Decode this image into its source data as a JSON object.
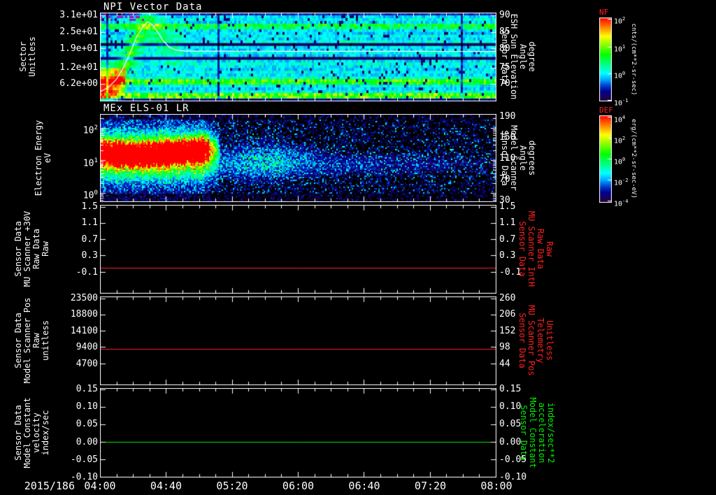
{
  "page": {
    "background": "#000000",
    "text_color": "#ffffff",
    "date_label": "2015/186"
  },
  "x_axis": {
    "tick_labels": [
      "04:00",
      "04:40",
      "05:20",
      "06:00",
      "06:40",
      "07:20",
      "08:00"
    ],
    "minutes_span": 240,
    "minor_ticks_per_major": 4
  },
  "chart_data": [
    {
      "id": "npi",
      "type": "heatmap",
      "title": "NPI Vector Data",
      "left_label": "Sector\nUnitless",
      "right_label": "Sensor Data\nESH Sun Elevation\nAngle\ndegree",
      "right_label_color": "#ffffff",
      "left_ticks": [
        {
          "label": "3.1e+01",
          "f": 0.031
        },
        {
          "label": "2.5e+01",
          "f": 0.219
        },
        {
          "label": "1.9e+01",
          "f": 0.406
        },
        {
          "label": "1.2e+01",
          "f": 0.625
        },
        {
          "label": "6.2e+00",
          "f": 0.806
        }
      ],
      "right_ticks": [
        {
          "label": "90",
          "f": 0.031
        },
        {
          "label": "85",
          "f": 0.219
        },
        {
          "label": "80",
          "f": 0.406
        },
        {
          "label": "75",
          "f": 0.625
        },
        {
          "label": "70",
          "f": 0.806
        }
      ],
      "sector_range": [
        0,
        32
      ],
      "heat_rows_base": [
        0.16,
        0.3,
        0.34,
        0.3,
        0.52,
        0.47,
        0.32,
        0.29,
        0.34,
        0.3,
        0.36,
        0.05,
        0.32,
        0.3,
        0.34,
        0.29,
        0.05,
        0.31,
        0.36,
        0.32,
        0.3,
        0.34,
        0.3,
        0.37,
        0.58,
        0.55,
        0.33,
        0.3,
        0.35,
        0.62,
        0.6,
        0.12
      ],
      "overlay_line": {
        "color": "#ffffff",
        "points": [
          [
            0,
            3.5
          ],
          [
            5,
            5
          ],
          [
            10,
            8
          ],
          [
            14,
            12
          ],
          [
            18,
            17
          ],
          [
            22,
            23
          ],
          [
            26,
            27
          ],
          [
            29,
            28.8
          ],
          [
            32,
            27.5
          ],
          [
            35,
            25
          ],
          [
            38,
            22
          ],
          [
            42,
            19.5
          ],
          [
            46,
            18.5
          ],
          [
            52,
            18.1
          ],
          [
            240,
            18
          ]
        ]
      }
    },
    {
      "id": "els",
      "type": "heatmap",
      "title": "MEx ELS-01 LR",
      "left_label": "Electron Energy\neV",
      "right_label": "Sensor Data\nModel Scanner\nAngle\ndegrees",
      "right_label_color": "#ffffff",
      "left_ticks": [
        {
          "label": "10^2",
          "f": 0.159
        },
        {
          "label": "10^1",
          "f": 0.53
        },
        {
          "label": "10^0",
          "f": 0.9
        }
      ],
      "right_ticks": [
        {
          "label": "190",
          "f": 0.032
        },
        {
          "label": "150",
          "f": 0.27
        },
        {
          "label": "110",
          "f": 0.508
        },
        {
          "label": "70",
          "f": 0.746
        },
        {
          "label": "30",
          "f": 0.984
        }
      ],
      "log_axis": {
        "log_top": 2.43,
        "decades_span": 2.7
      },
      "burst": {
        "t_start_min": 0,
        "t_end_min": 70,
        "energy_center_frac": 0.42
      }
    },
    {
      "id": "mu-scanner-30v",
      "type": "line",
      "left_label": "Sensor Data\nMU Scanner +30V\nRaw Data\nRaw",
      "right_label": "Sensor Data\nMU Scanner IntH\nRaw Data\nRaw",
      "right_label_color": "#ff2020",
      "left_ticks": [
        {
          "label": "1.5",
          "f": 0.02
        },
        {
          "label": "1.1",
          "f": 0.205
        },
        {
          "label": "0.7",
          "f": 0.39
        },
        {
          "label": "0.3",
          "f": 0.575
        },
        {
          "label": "-0.1",
          "f": 0.76
        }
      ],
      "right_ticks": [
        {
          "label": "1.5",
          "f": 0.02
        },
        {
          "label": "1.1",
          "f": 0.205
        },
        {
          "label": "0.7",
          "f": 0.39
        },
        {
          "label": "0.3",
          "f": 0.575
        },
        {
          "label": "-0.1",
          "f": 0.76
        }
      ],
      "line": {
        "color": "#ff2020",
        "value": 0.0,
        "f": 0.715
      }
    },
    {
      "id": "model-scanner-pos",
      "type": "line",
      "left_label": "Sensor Data\nModel Scanner Pos\nRaw\nunitless",
      "right_label": "Sensor Data\nMU Scanner Pos\nTelemetry\nUnitless",
      "right_label_color": "#ff2020",
      "left_ticks": [
        {
          "label": "23500",
          "f": 0.02
        },
        {
          "label": "18800",
          "f": 0.205
        },
        {
          "label": "14100",
          "f": 0.39
        },
        {
          "label": "9400",
          "f": 0.575
        },
        {
          "label": "4700",
          "f": 0.76
        }
      ],
      "right_ticks": [
        {
          "label": "260",
          "f": 0.02
        },
        {
          "label": "206",
          "f": 0.205
        },
        {
          "label": "152",
          "f": 0.39
        },
        {
          "label": "98",
          "f": 0.575
        },
        {
          "label": "44",
          "f": 0.76
        }
      ],
      "line": {
        "color": "#ff2020",
        "value": 8800,
        "f": 0.599
      }
    },
    {
      "id": "model-constant",
      "type": "line",
      "left_label": "Sensor Data\nModel Constant\nvelocity\nindex/sec",
      "right_label": "Sensor Data\nModel Constant\nacceleration\nindex/sec**2",
      "right_label_color": "#00ee00",
      "left_ticks": [
        {
          "label": "0.15",
          "f": 0.016
        },
        {
          "label": "0.10",
          "f": 0.213
        },
        {
          "label": "0.05",
          "f": 0.41
        },
        {
          "label": "0.00",
          "f": 0.607
        },
        {
          "label": "-0.05",
          "f": 0.803
        },
        {
          "label": "-0.10",
          "f": 1.0
        }
      ],
      "right_ticks": [
        {
          "label": "0.15",
          "f": 0.016
        },
        {
          "label": "0.10",
          "f": 0.213
        },
        {
          "label": "0.05",
          "f": 0.41
        },
        {
          "label": "0.00",
          "f": 0.607
        },
        {
          "label": "-0.05",
          "f": 0.803
        },
        {
          "label": "-0.10",
          "f": 1.0
        }
      ],
      "line": {
        "color": "#00ee00",
        "value": 0.0,
        "f": 0.607
      }
    }
  ],
  "colorbars": [
    {
      "id": "nf",
      "name": "NF",
      "name_color": "#ff2020",
      "unit": "cnts/(cm**2-sr-sec)",
      "ticks": [
        {
          "label": "10^2",
          "f": 0.02
        },
        {
          "label": "10^1",
          "f": 0.35
        },
        {
          "label": "10^0",
          "f": 0.67
        },
        {
          "label": "10^-1",
          "f": 0.99
        }
      ]
    },
    {
      "id": "def",
      "name": "DEF",
      "name_color": "#ff2020",
      "unit": "erg/(cm**2-sr-sec-eV)",
      "ticks": [
        {
          "label": "10^4",
          "f": 0.02
        },
        {
          "label": "10^2",
          "f": 0.26
        },
        {
          "label": "10^0",
          "f": 0.5
        },
        {
          "label": "10^-2",
          "f": 0.74
        },
        {
          "label": "10^-4",
          "f": 0.98
        }
      ]
    }
  ]
}
